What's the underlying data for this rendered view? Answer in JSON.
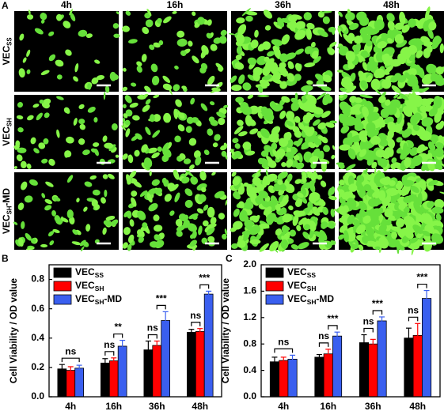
{
  "panel_a": {
    "label": "A",
    "columns": [
      "4h",
      "16h",
      "36h",
      "48h"
    ],
    "rows": [
      {
        "name": "VEC",
        "sub": "SS"
      },
      {
        "name": "VEC",
        "sub": "SH"
      },
      {
        "name": "VEC",
        "sub": "SH",
        "suffix": "-MD"
      }
    ]
  },
  "chart_data": [
    {
      "type": "bar",
      "panel": "B",
      "ylabel": "Cell Viability / OD value",
      "categories": [
        "4h",
        "16h",
        "36h",
        "48h"
      ],
      "series": [
        {
          "name": "VEC",
          "sub": "SS",
          "color": "#000000",
          "values": [
            0.19,
            0.23,
            0.32,
            0.44
          ],
          "errors": [
            0.03,
            0.03,
            0.06,
            0.02
          ]
        },
        {
          "name": "VEC",
          "sub": "SH",
          "color": "#ff0000",
          "values": [
            0.18,
            0.245,
            0.35,
            0.445
          ],
          "errors": [
            0.025,
            0.02,
            0.03,
            0.02
          ]
        },
        {
          "name": "VEC",
          "sub": "SH",
          "suffix": "-MD",
          "color": "#3a5fef",
          "values": [
            0.195,
            0.345,
            0.52,
            0.7
          ],
          "errors": [
            0.02,
            0.04,
            0.06,
            0.02
          ]
        }
      ],
      "ylim": [
        0,
        0.9
      ],
      "yticks": [
        {
          "value": 0,
          "label": "0.0"
        },
        0.2,
        0.4,
        0.6,
        0.8
      ],
      "legend": "upper left",
      "significance": [
        [
          "ns"
        ],
        [
          "ns",
          "**"
        ],
        [
          "ns",
          "***"
        ],
        [
          "ns",
          "***"
        ]
      ]
    },
    {
      "type": "bar",
      "panel": "C",
      "ylabel": "Cell Viability / OD value",
      "categories": [
        "4h",
        "16h",
        "36h",
        "48h"
      ],
      "series": [
        {
          "name": "VEC",
          "sub": "SS",
          "color": "#000000",
          "values": [
            0.53,
            0.6,
            0.82,
            0.89
          ],
          "errors": [
            0.07,
            0.04,
            0.12,
            0.15
          ]
        },
        {
          "name": "VEC",
          "sub": "SH",
          "color": "#ff0000",
          "values": [
            0.55,
            0.65,
            0.8,
            0.93
          ],
          "errors": [
            0.05,
            0.07,
            0.07,
            0.18
          ]
        },
        {
          "name": "VEC",
          "sub": "SH",
          "suffix": "-MD",
          "color": "#3a5fef",
          "values": [
            0.57,
            0.92,
            1.15,
            1.49
          ],
          "errors": [
            0.06,
            0.06,
            0.06,
            0.12
          ]
        }
      ],
      "ylim": [
        0,
        2.0
      ],
      "yticks": [
        {
          "value": 0,
          "label": "0.0"
        },
        0.4,
        0.8,
        1.2,
        1.6,
        {
          "value": 2,
          "label": "2.0"
        }
      ],
      "legend": "upper left",
      "significance": [
        [
          "ns"
        ],
        [
          "ns",
          "***"
        ],
        [
          "ns",
          "***"
        ],
        [
          "ns",
          "***"
        ]
      ]
    }
  ]
}
